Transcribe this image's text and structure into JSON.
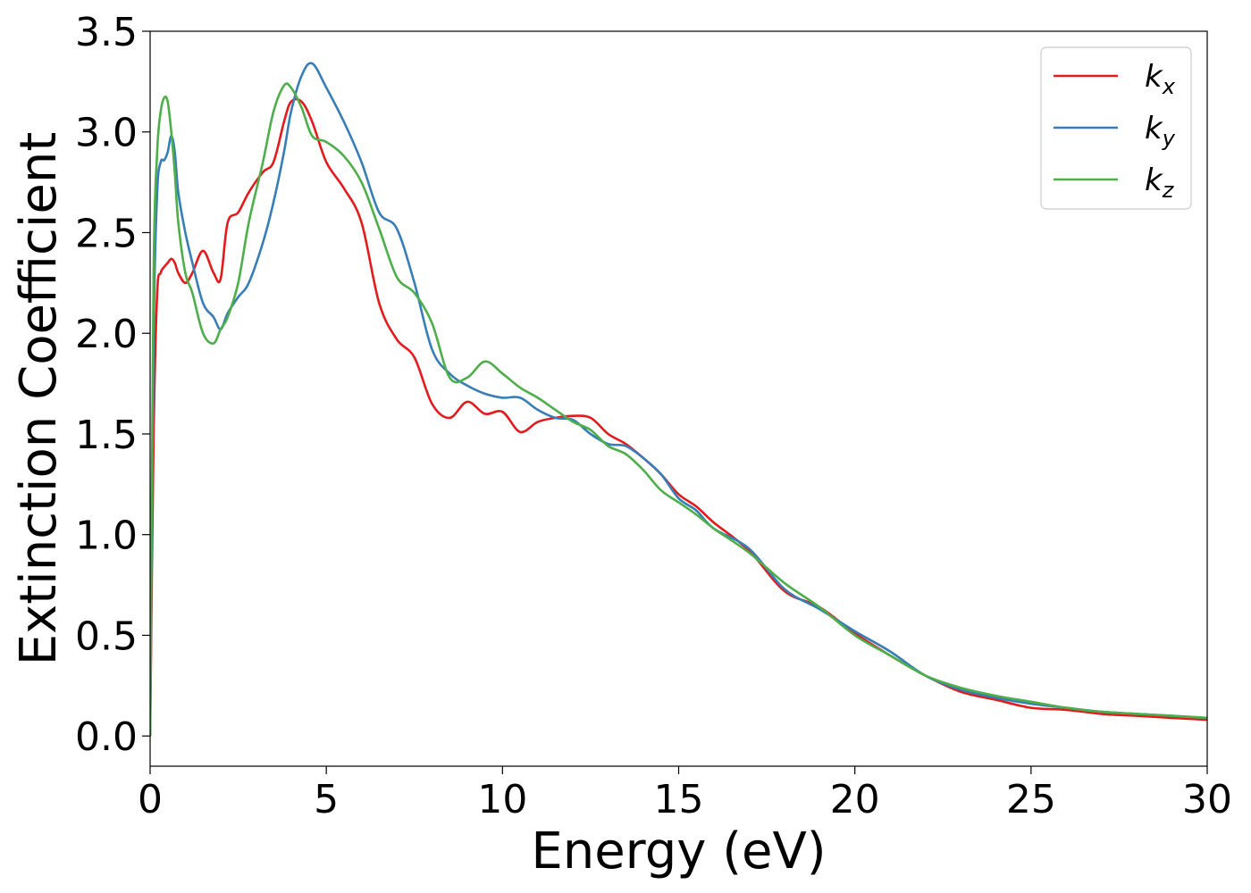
{
  "chart_data": {
    "type": "line",
    "title": "",
    "xlabel": "Energy (eV)",
    "ylabel": "Extinction Coefficient",
    "xlim": [
      0,
      30
    ],
    "ylim": [
      -0.15,
      3.5
    ],
    "xticks": [
      0,
      5,
      10,
      15,
      20,
      25,
      30
    ],
    "xtick_labels": [
      "0",
      "5",
      "10",
      "15",
      "20",
      "25",
      "30"
    ],
    "yticks": [
      0.0,
      0.5,
      1.0,
      1.5,
      2.0,
      2.5,
      3.0,
      3.5
    ],
    "ytick_labels": [
      "0.0",
      "0.5",
      "1.0",
      "1.5",
      "2.0",
      "2.5",
      "3.0",
      "3.5"
    ],
    "grid": false,
    "legend_position": "top-right",
    "series": [
      {
        "name": "k_x",
        "label_main": "k",
        "label_sub": "x",
        "color": "#e41a1c",
        "x": [
          0,
          0.1,
          0.2,
          0.3,
          0.4,
          0.5,
          0.6,
          0.7,
          0.8,
          1.0,
          1.2,
          1.5,
          1.8,
          2.0,
          2.2,
          2.5,
          2.8,
          3.2,
          3.5,
          3.8,
          4.0,
          4.3,
          4.6,
          5.0,
          5.5,
          6.0,
          6.5,
          7.0,
          7.5,
          8.0,
          8.5,
          9.0,
          9.5,
          10.0,
          10.5,
          11.0,
          11.5,
          12.0,
          12.5,
          13.0,
          13.5,
          14.0,
          14.5,
          15.0,
          15.5,
          16.0,
          17.0,
          18.0,
          19.0,
          20.0,
          21.0,
          22.0,
          23.0,
          24.0,
          25.0,
          26.0,
          27.0,
          28.0,
          29.0,
          30.0
        ],
        "y": [
          0.0,
          1.5,
          2.2,
          2.3,
          2.33,
          2.35,
          2.37,
          2.35,
          2.3,
          2.25,
          2.3,
          2.41,
          2.3,
          2.27,
          2.55,
          2.6,
          2.7,
          2.8,
          2.85,
          3.05,
          3.15,
          3.15,
          3.05,
          2.85,
          2.72,
          2.55,
          2.15,
          1.97,
          1.88,
          1.65,
          1.58,
          1.66,
          1.6,
          1.61,
          1.51,
          1.56,
          1.58,
          1.59,
          1.58,
          1.5,
          1.45,
          1.38,
          1.3,
          1.2,
          1.14,
          1.06,
          0.92,
          0.72,
          0.64,
          0.51,
          0.4,
          0.3,
          0.22,
          0.18,
          0.14,
          0.13,
          0.11,
          0.1,
          0.09,
          0.08
        ]
      },
      {
        "name": "k_y",
        "label_main": "k",
        "label_sub": "y",
        "color": "#377eb8",
        "x": [
          0,
          0.1,
          0.2,
          0.3,
          0.4,
          0.5,
          0.6,
          0.7,
          0.8,
          1.0,
          1.2,
          1.5,
          1.8,
          2.0,
          2.2,
          2.5,
          2.8,
          3.2,
          3.5,
          3.8,
          4.0,
          4.3,
          4.6,
          5.0,
          5.5,
          6.0,
          6.5,
          7.0,
          7.5,
          8.0,
          8.5,
          9.0,
          9.5,
          10.0,
          10.5,
          11.0,
          11.5,
          12.0,
          12.5,
          13.0,
          13.5,
          14.0,
          14.5,
          15.0,
          15.5,
          16.0,
          17.0,
          18.0,
          19.0,
          20.0,
          21.0,
          22.0,
          23.0,
          24.0,
          25.0,
          26.0,
          27.0,
          28.0,
          29.0,
          30.0
        ],
        "y": [
          0.0,
          2.0,
          2.7,
          2.85,
          2.86,
          2.9,
          2.98,
          2.9,
          2.7,
          2.5,
          2.35,
          2.15,
          2.08,
          2.02,
          2.1,
          2.18,
          2.25,
          2.45,
          2.65,
          2.9,
          3.1,
          3.28,
          3.34,
          3.22,
          3.05,
          2.85,
          2.6,
          2.52,
          2.25,
          1.92,
          1.8,
          1.74,
          1.7,
          1.68,
          1.68,
          1.62,
          1.58,
          1.57,
          1.5,
          1.45,
          1.44,
          1.38,
          1.3,
          1.18,
          1.12,
          1.03,
          0.93,
          0.73,
          0.63,
          0.52,
          0.42,
          0.3,
          0.23,
          0.19,
          0.16,
          0.14,
          0.12,
          0.11,
          0.1,
          0.09
        ]
      },
      {
        "name": "k_z",
        "label_main": "k",
        "label_sub": "z",
        "color": "#4daf4a",
        "x": [
          0,
          0.1,
          0.2,
          0.3,
          0.4,
          0.5,
          0.6,
          0.7,
          0.8,
          1.0,
          1.2,
          1.5,
          1.8,
          2.0,
          2.2,
          2.5,
          2.8,
          3.2,
          3.5,
          3.8,
          4.0,
          4.3,
          4.6,
          5.0,
          5.5,
          6.0,
          6.5,
          7.0,
          7.5,
          8.0,
          8.5,
          9.0,
          9.5,
          10.0,
          10.5,
          11.0,
          11.5,
          12.0,
          12.5,
          13.0,
          13.5,
          14.0,
          14.5,
          15.0,
          15.5,
          16.0,
          17.0,
          18.0,
          19.0,
          20.0,
          21.0,
          22.0,
          23.0,
          24.0,
          25.0,
          26.0,
          27.0,
          28.0,
          29.0,
          30.0
        ],
        "y": [
          0.0,
          2.3,
          2.9,
          3.1,
          3.17,
          3.15,
          3.0,
          2.8,
          2.55,
          2.3,
          2.2,
          2.0,
          1.95,
          2.02,
          2.08,
          2.25,
          2.55,
          2.85,
          3.1,
          3.23,
          3.22,
          3.12,
          2.98,
          2.95,
          2.88,
          2.75,
          2.52,
          2.28,
          2.2,
          2.05,
          1.78,
          1.78,
          1.86,
          1.8,
          1.73,
          1.68,
          1.62,
          1.56,
          1.52,
          1.44,
          1.4,
          1.32,
          1.22,
          1.16,
          1.1,
          1.03,
          0.91,
          0.76,
          0.64,
          0.5,
          0.4,
          0.3,
          0.24,
          0.2,
          0.17,
          0.14,
          0.12,
          0.11,
          0.1,
          0.09
        ]
      }
    ]
  }
}
